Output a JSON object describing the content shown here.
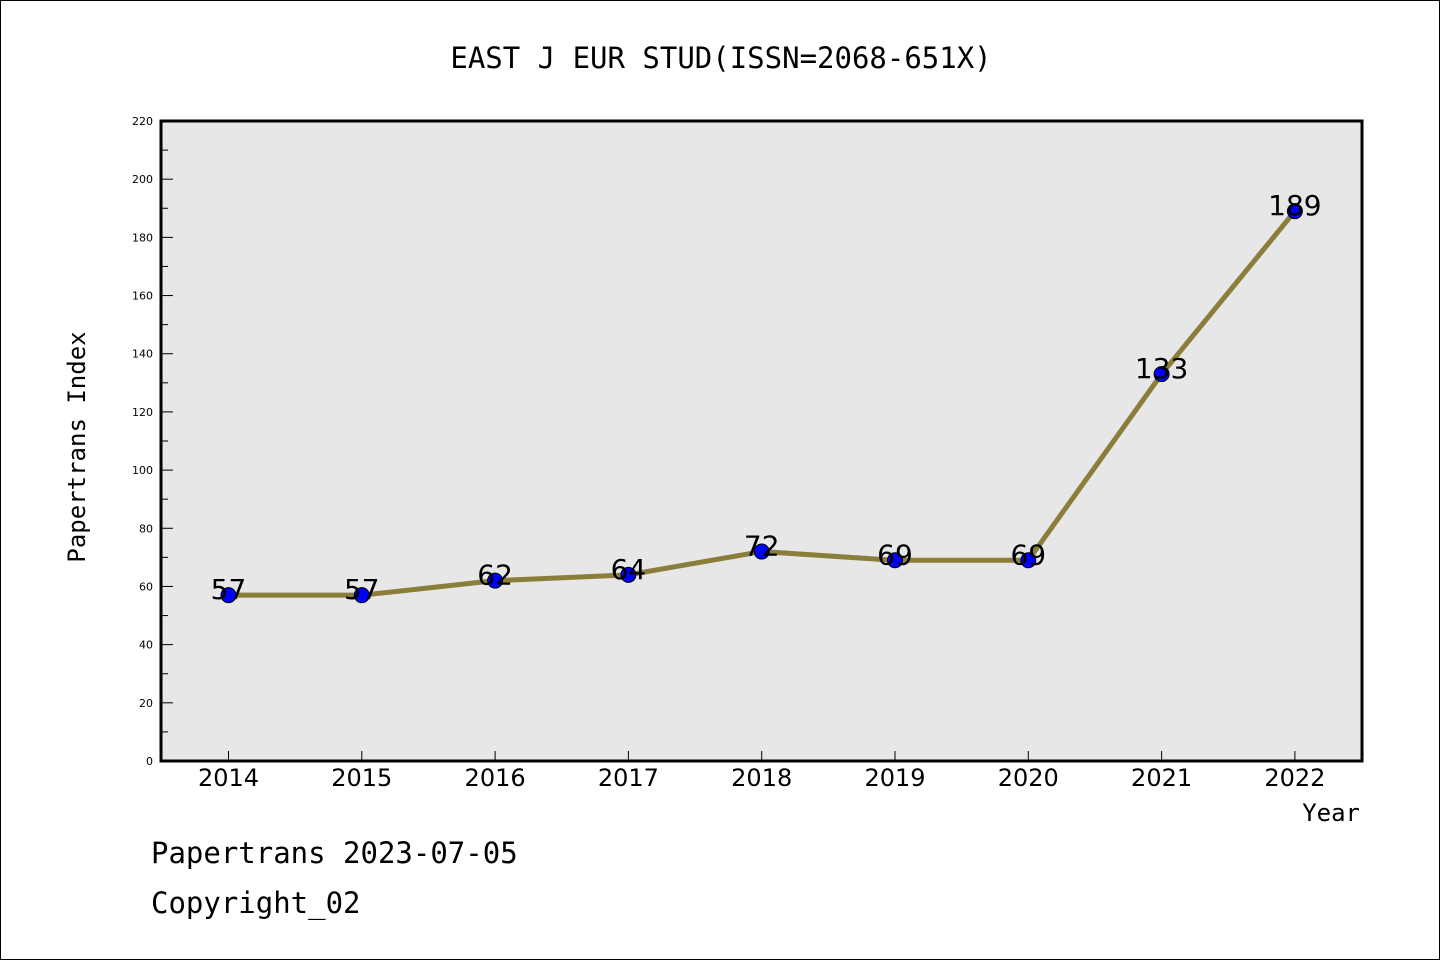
{
  "chart_data": {
    "type": "line",
    "title": "EAST J EUR STUD(ISSN=2068-651X)",
    "xlabel": "Year",
    "ylabel": "Papertrans Index",
    "categories": [
      "2014",
      "2015",
      "2016",
      "2017",
      "2018",
      "2019",
      "2020",
      "2021",
      "2022"
    ],
    "series": [
      {
        "values": [
          57,
          57,
          62,
          64,
          72,
          69,
          69,
          133,
          189
        ]
      }
    ],
    "data_labels": [
      "57",
      "57",
      "62",
      "64",
      "72",
      "69",
      "69",
      "133",
      "189"
    ],
    "ylim": [
      0,
      220
    ],
    "yticks": [
      "0",
      "20",
      "40",
      "60",
      "80",
      "100",
      "120",
      "140",
      "160",
      "180",
      "200",
      "220"
    ],
    "grid": false,
    "legend": "none",
    "colors": {
      "line": "#8b7d3a",
      "marker": "#0000ff",
      "plot_background": "#e7e7e7"
    }
  },
  "footer": {
    "line1": "Papertrans 2023-07-05",
    "line2": "Copyright_02"
  }
}
